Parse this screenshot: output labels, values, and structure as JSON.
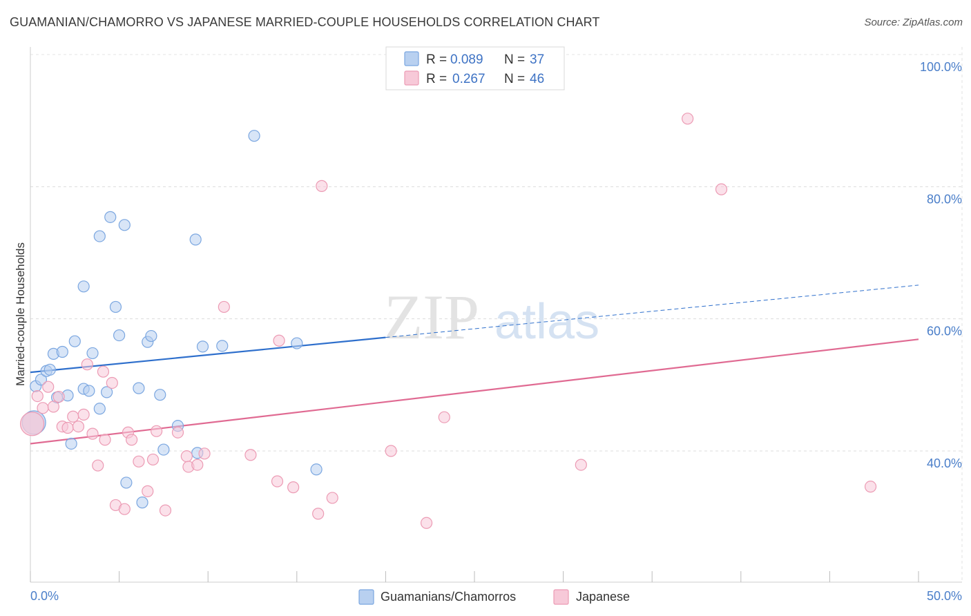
{
  "header": {
    "title": "GUAMANIAN/CHAMORRO VS JAPANESE MARRIED-COUPLE HOUSEHOLDS CORRELATION CHART",
    "source": "Source: ZipAtlas.com"
  },
  "watermark": {
    "zip": "ZIP",
    "atlas": "atlas"
  },
  "legend": {
    "rows": [
      {
        "r_label": "R = ",
        "r_value": "0.089",
        "n_label": "N = ",
        "n_value": "37"
      },
      {
        "r_label": "R = ",
        "r_value": "0.267",
        "n_label": "N = ",
        "n_value": "46"
      }
    ]
  },
  "chart_data": {
    "type": "scatter",
    "title": "GUAMANIAN/CHAMORRO VS JAPANESE MARRIED-COUPLE HOUSEHOLDS CORRELATION CHART",
    "xlabel": "",
    "ylabel": "Married-couple Households",
    "xlim": [
      0,
      50
    ],
    "ylim": [
      20,
      102
    ],
    "x_tick_labels": [
      "0.0%",
      "50.0%"
    ],
    "y_ticks": [
      40,
      60,
      80,
      100
    ],
    "y_tick_labels": [
      "40.0%",
      "60.0%",
      "80.0%",
      "100.0%"
    ],
    "series": [
      {
        "name": "Guamanians/Chamorros",
        "color": "#7aa6e0",
        "fill": "#b8d0f0",
        "line_color": "#2e6fcc",
        "trend": {
          "x0": 0,
          "y0": 51.9,
          "x_solid_end": 20,
          "x1": 50,
          "y1": 65.1
        },
        "points": [
          [
            0.3,
            49.8
          ],
          [
            0.6,
            50.8
          ],
          [
            0.9,
            52.1
          ],
          [
            1.1,
            52.3
          ],
          [
            1.3,
            54.7
          ],
          [
            1.5,
            48.1
          ],
          [
            1.8,
            55.0
          ],
          [
            2.1,
            48.4
          ],
          [
            2.5,
            56.6
          ],
          [
            3.0,
            49.4
          ],
          [
            3.0,
            64.9
          ],
          [
            3.3,
            49.1
          ],
          [
            3.5,
            54.8
          ],
          [
            3.9,
            46.4
          ],
          [
            3.9,
            72.5
          ],
          [
            4.3,
            48.9
          ],
          [
            4.5,
            75.4
          ],
          [
            4.8,
            61.8
          ],
          [
            5.0,
            57.5
          ],
          [
            5.3,
            74.2
          ],
          [
            5.4,
            35.2
          ],
          [
            6.1,
            49.5
          ],
          [
            6.3,
            32.2
          ],
          [
            6.6,
            56.5
          ],
          [
            6.8,
            57.4
          ],
          [
            7.3,
            48.5
          ],
          [
            7.5,
            40.2
          ],
          [
            8.3,
            43.8
          ],
          [
            9.3,
            72.0
          ],
          [
            9.4,
            39.7
          ],
          [
            9.7,
            55.8
          ],
          [
            10.8,
            55.9
          ],
          [
            12.6,
            87.7
          ],
          [
            15.0,
            56.3
          ],
          [
            16.1,
            37.2
          ],
          [
            2.3,
            41.1
          ],
          [
            0.2,
            44.3
          ]
        ]
      },
      {
        "name": "Japanese",
        "color": "#ec9bb4",
        "fill": "#f7c9d8",
        "line_color": "#e06a92",
        "trend": {
          "x0": 0,
          "y0": 41.1,
          "x_solid_end": 50,
          "x1": 50,
          "y1": 56.9
        },
        "points": [
          [
            0.4,
            48.3
          ],
          [
            0.7,
            46.5
          ],
          [
            1.0,
            49.7
          ],
          [
            1.3,
            46.7
          ],
          [
            1.6,
            48.2
          ],
          [
            1.8,
            43.7
          ],
          [
            2.1,
            43.5
          ],
          [
            2.4,
            45.2
          ],
          [
            2.7,
            43.7
          ],
          [
            3.0,
            45.5
          ],
          [
            3.2,
            53.1
          ],
          [
            3.5,
            42.6
          ],
          [
            3.8,
            37.8
          ],
          [
            4.1,
            52.0
          ],
          [
            4.2,
            41.7
          ],
          [
            4.6,
            50.3
          ],
          [
            4.8,
            31.8
          ],
          [
            5.3,
            31.2
          ],
          [
            5.5,
            42.8
          ],
          [
            5.7,
            41.7
          ],
          [
            6.1,
            38.4
          ],
          [
            6.6,
            33.9
          ],
          [
            6.9,
            38.7
          ],
          [
            7.1,
            43.0
          ],
          [
            7.6,
            31.0
          ],
          [
            8.3,
            42.8
          ],
          [
            8.8,
            39.2
          ],
          [
            8.9,
            37.6
          ],
          [
            9.4,
            37.9
          ],
          [
            9.8,
            39.6
          ],
          [
            10.9,
            61.8
          ],
          [
            12.4,
            39.4
          ],
          [
            13.9,
            35.4
          ],
          [
            14.0,
            56.7
          ],
          [
            14.8,
            34.5
          ],
          [
            16.2,
            30.5
          ],
          [
            16.4,
            80.1
          ],
          [
            17.0,
            32.9
          ],
          [
            20.3,
            40.0
          ],
          [
            22.3,
            29.1
          ],
          [
            23.3,
            45.1
          ],
          [
            31.0,
            37.9
          ],
          [
            37.0,
            90.3
          ],
          [
            38.9,
            79.6
          ],
          [
            47.3,
            34.6
          ],
          [
            0.1,
            44.1
          ]
        ]
      }
    ]
  },
  "bottom_legend": [
    {
      "label": "Guamanians/Chamorros"
    },
    {
      "label": "Japanese"
    }
  ]
}
